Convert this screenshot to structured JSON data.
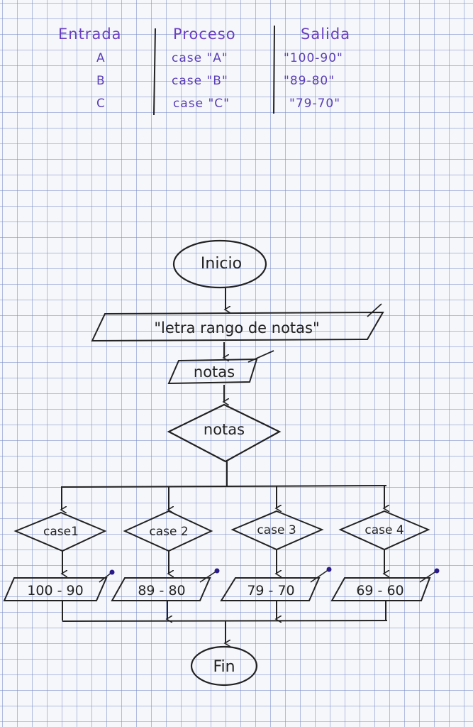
{
  "table": {
    "headers": [
      "Entrada",
      "Proceso",
      "Salida"
    ],
    "rows": [
      [
        "A",
        "case \"A\"",
        "\"100-90\""
      ],
      [
        "B",
        "case \"B\"",
        "\"89-80\""
      ],
      [
        "C",
        "case \"C\"",
        "\"79-70\""
      ]
    ]
  },
  "flowchart": {
    "start": "Inicio",
    "message": "\"letra rango de notas\"",
    "input": "notas",
    "decision": "notas",
    "cases": [
      "case1",
      "case 2",
      "case 3",
      "case 4"
    ],
    "outputs": [
      "100 - 90",
      "89 - 80",
      "79 - 70",
      "69 - 60"
    ],
    "end": "Fin"
  },
  "colors": {
    "ink": "#222222",
    "table_ink": "#5a3fb8",
    "grid": "#7f8cc8",
    "pen_tip": "#2a1a8a"
  }
}
